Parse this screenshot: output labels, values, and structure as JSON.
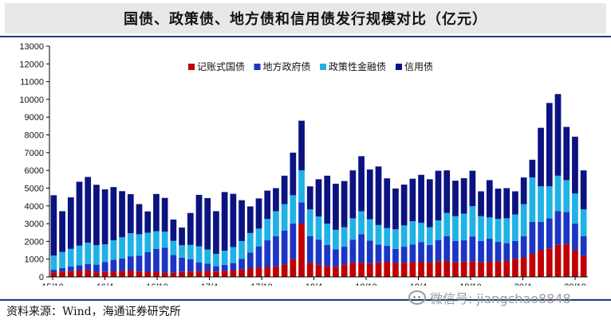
{
  "title": "国债、政策债、地方债和信用债发行规模对比（亿元）",
  "source": "资料来源：Wind，海通证券研究所",
  "watermark": "微信号: jiangchao8848",
  "watermark_icon": "wechat-icon",
  "colors": {
    "rule": "#1f3c7a",
    "guozhai": "#c00000",
    "difang": "#1b35c4",
    "zhengce": "#1fb2e4",
    "xinyong": "#0b1380"
  },
  "chart_data": {
    "type": "bar",
    "stacked": true,
    "title": "国债、政策债、地方债和信用债发行规模对比（亿元）",
    "xlabel": "",
    "ylabel": "",
    "ylim": [
      0,
      13000
    ],
    "yticks": [
      0,
      1000,
      2000,
      3000,
      4000,
      5000,
      6000,
      7000,
      8000,
      9000,
      10000,
      11000,
      12000,
      13000
    ],
    "x_tick_labels": [
      "15/10",
      "16/4",
      "16/10",
      "17/4",
      "17/10",
      "18/4",
      "18/10",
      "19/4",
      "19/10",
      "20/4",
      "20/10"
    ],
    "legend": {
      "position": "top-center"
    },
    "series": [
      {
        "name": "记账式国债",
        "key": "guozhai",
        "values": [
          250,
          300,
          330,
          360,
          380,
          240,
          280,
          310,
          330,
          360,
          300,
          290,
          270,
          250,
          230,
          280,
          300,
          320,
          340,
          300,
          330,
          380,
          420,
          470,
          520,
          560,
          600,
          700,
          1000,
          3000,
          800,
          700,
          600,
          550,
          700,
          800,
          800,
          750,
          820,
          850,
          780,
          800,
          830,
          850,
          800,
          880,
          900,
          820,
          860,
          880,
          820,
          850,
          870,
          900,
          1020,
          1100,
          1300,
          1500,
          1600,
          1800,
          1850,
          1500,
          1200
        ]
      },
      {
        "name": "地方政府债",
        "key": "difang",
        "values": [
          150,
          200,
          250,
          300,
          350,
          450,
          550,
          650,
          700,
          800,
          900,
          1100,
          1300,
          1400,
          1000,
          800,
          700,
          500,
          400,
          300,
          350,
          400,
          600,
          900,
          1200,
          1500,
          1700,
          1900,
          2000,
          1200,
          1500,
          1400,
          1200,
          1000,
          1000,
          1300,
          1600,
          1300,
          1000,
          900,
          800,
          900,
          1000,
          1100,
          1000,
          1200,
          1400,
          1200,
          1200,
          1400,
          1200,
          1300,
          1100,
          1000,
          1000,
          1200,
          1800,
          1600,
          1700,
          1900,
          1800,
          1500,
          1100
        ]
      },
      {
        "name": "政策性金融债",
        "key": "zhengce",
        "values": [
          800,
          900,
          1000,
          1100,
          1200,
          1100,
          1000,
          1100,
          1200,
          1300,
          1200,
          1100,
          1000,
          900,
          800,
          700,
          800,
          900,
          800,
          700,
          800,
          900,
          1000,
          1100,
          1000,
          1200,
          1400,
          1500,
          1600,
          1800,
          1500,
          1300,
          1200,
          1100,
          1100,
          1200,
          1300,
          1200,
          1100,
          1000,
          1100,
          1200,
          1300,
          1100,
          1000,
          1100,
          1300,
          1400,
          1500,
          1700,
          1400,
          1200,
          1300,
          1400,
          1500,
          1800,
          2500,
          2000,
          1800,
          2000,
          1800,
          1700,
          1500
        ]
      },
      {
        "name": "信用债",
        "key": "xinyong",
        "values": [
          3400,
          2300,
          2900,
          3600,
          3700,
          3400,
          3100,
          3000,
          2600,
          2200,
          1700,
          1200,
          2100,
          1900,
          1200,
          1000,
          1800,
          2900,
          2900,
          2400,
          3300,
          3000,
          2300,
          1500,
          1700,
          1600,
          1300,
          1600,
          2400,
          2800,
          1300,
          2100,
          2700,
          2600,
          2600,
          2700,
          3100,
          2800,
          3300,
          2800,
          2300,
          2300,
          2400,
          2700,
          2700,
          2800,
          2400,
          2000,
          2000,
          2000,
          1400,
          2100,
          1700,
          1700,
          1300,
          1500,
          1000,
          3300,
          4700,
          4600,
          3000,
          3200,
          2200
        ]
      }
    ]
  }
}
